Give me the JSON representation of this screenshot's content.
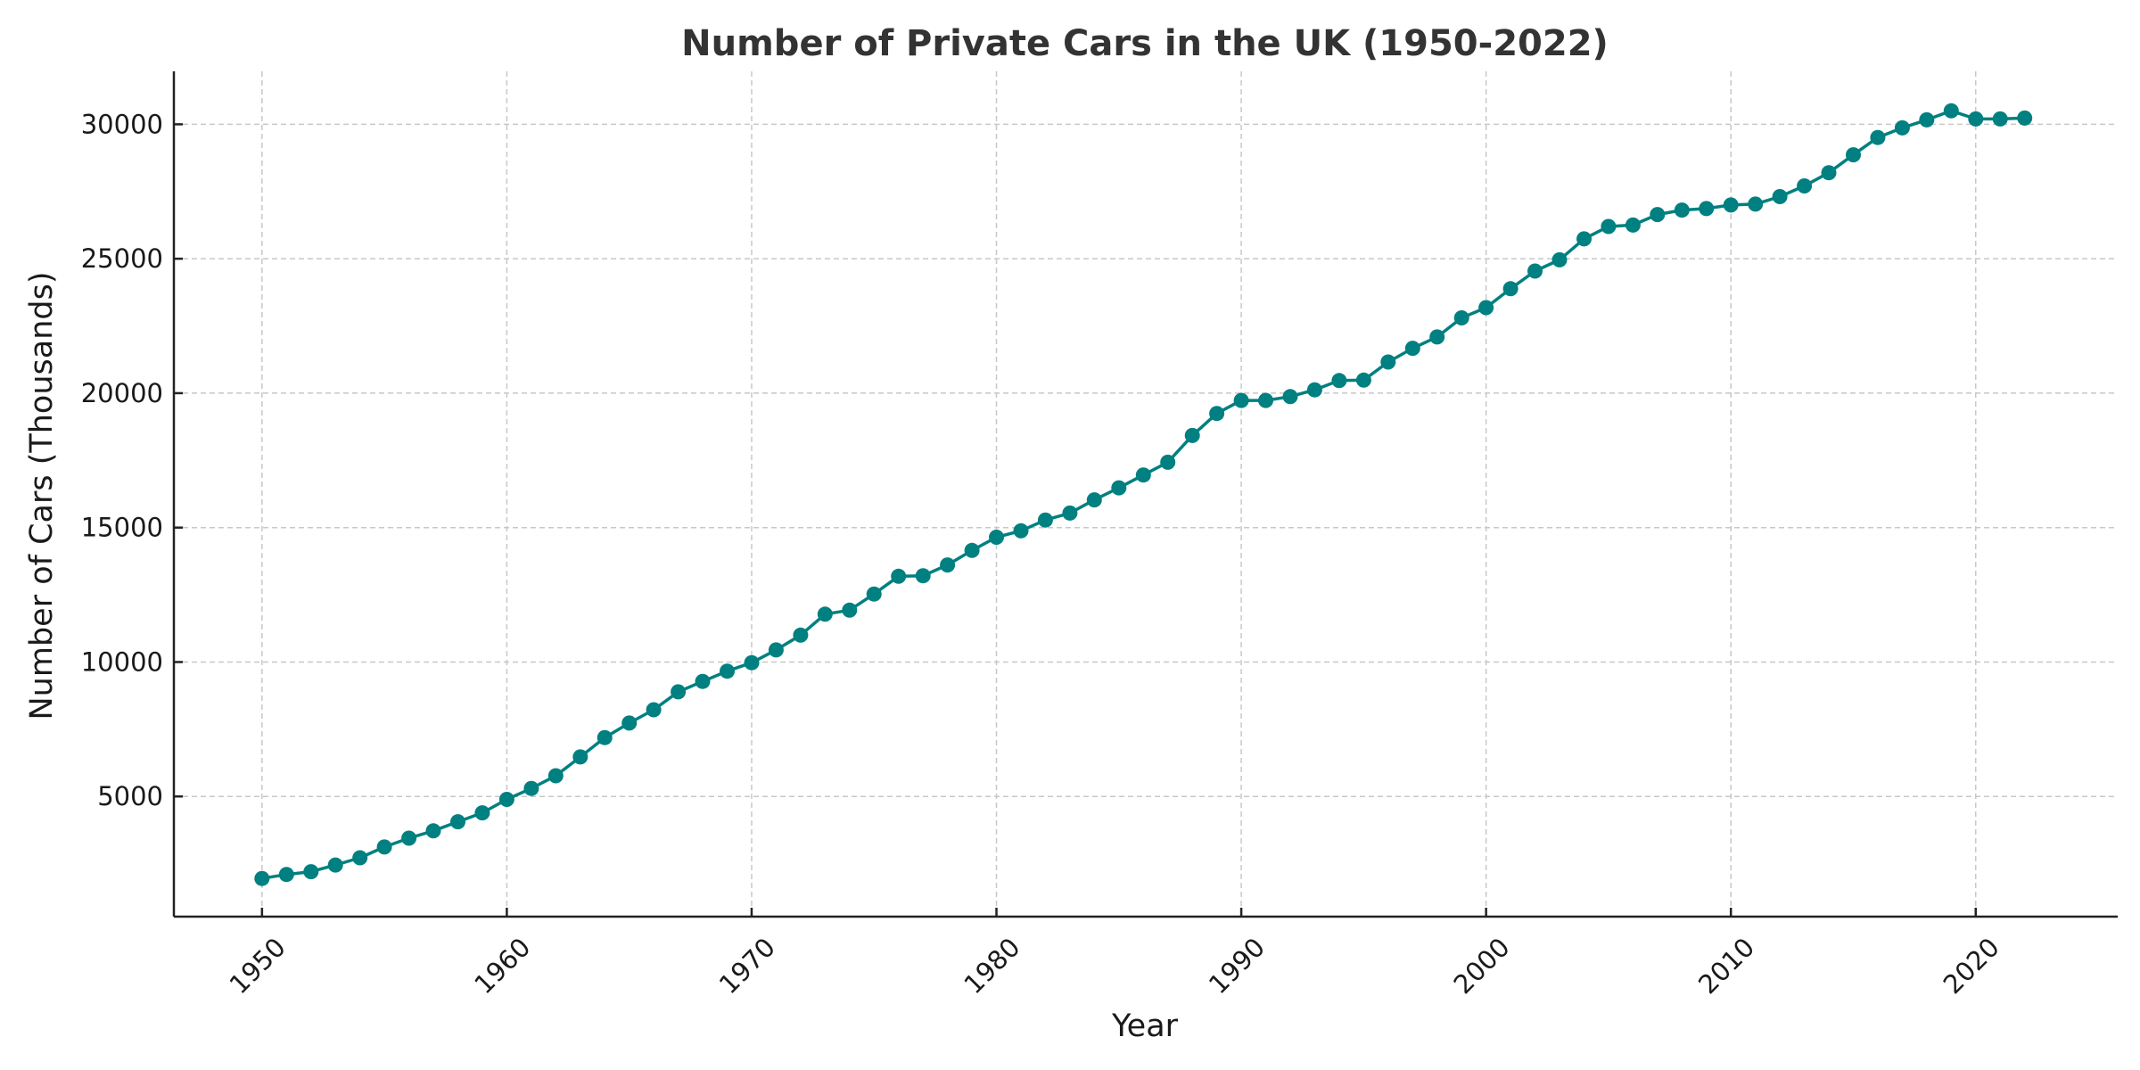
{
  "chart_data": {
    "type": "line",
    "title": "Number of Private Cars in the UK (1950-2022)",
    "xlabel": "Year",
    "ylabel": "Number of Cars (Thousands)",
    "xlim": [
      1946.4,
      2025.8
    ],
    "ylim": [
      530,
      31970
    ],
    "xticks": [
      1950,
      1960,
      1970,
      1980,
      1990,
      2000,
      2010,
      2020
    ],
    "yticks": [
      5000,
      10000,
      15000,
      20000,
      25000,
      30000
    ],
    "xtick_labels": [
      "1950",
      "1960",
      "1970",
      "1980",
      "1990",
      "2000",
      "2010",
      "2020"
    ],
    "ytick_labels": [
      "5000",
      "10000",
      "15000",
      "20000",
      "25000",
      "30000"
    ],
    "xtick_rotation_deg": 45,
    "grid": true,
    "legend": null,
    "series": [
      {
        "name": "Private Cars",
        "color": "#008080",
        "marker": "circle",
        "x": [
          1950,
          1951,
          1952,
          1953,
          1954,
          1955,
          1956,
          1957,
          1958,
          1959,
          1960,
          1961,
          1962,
          1963,
          1964,
          1965,
          1966,
          1967,
          1968,
          1969,
          1970,
          1971,
          1972,
          1973,
          1974,
          1975,
          1976,
          1977,
          1978,
          1979,
          1980,
          1981,
          1982,
          1983,
          1984,
          1985,
          1986,
          1987,
          1988,
          1989,
          1990,
          1991,
          1992,
          1993,
          1994,
          1995,
          1996,
          1997,
          1998,
          1999,
          2000,
          2001,
          2002,
          2003,
          2004,
          2005,
          2006,
          2007,
          2008,
          2009,
          2010,
          2011,
          2012,
          2013,
          2014,
          2015,
          2016,
          2017,
          2018,
          2019,
          2020,
          2021,
          2022
        ],
        "values": [
          1950,
          2100,
          2200,
          2450,
          2720,
          3120,
          3450,
          3720,
          4060,
          4390,
          4890,
          5300,
          5770,
          6470,
          7190,
          7730,
          8225,
          8890,
          9280,
          9660,
          9975,
          10450,
          11000,
          11780,
          11930,
          12530,
          13190,
          13210,
          13610,
          14150,
          14640,
          14880,
          15280,
          15540,
          16030,
          16480,
          16955,
          17430,
          18425,
          19245,
          19730,
          19730,
          19870,
          20125,
          20470,
          20485,
          21160,
          21670,
          22090,
          22800,
          23180,
          23885,
          24540,
          24960,
          25740,
          26200,
          26253,
          26643,
          26810,
          26867,
          27000,
          27033,
          27310,
          27710,
          28200,
          28867,
          29510,
          29867,
          30167,
          30500,
          30200,
          30200,
          30233
        ]
      }
    ]
  }
}
